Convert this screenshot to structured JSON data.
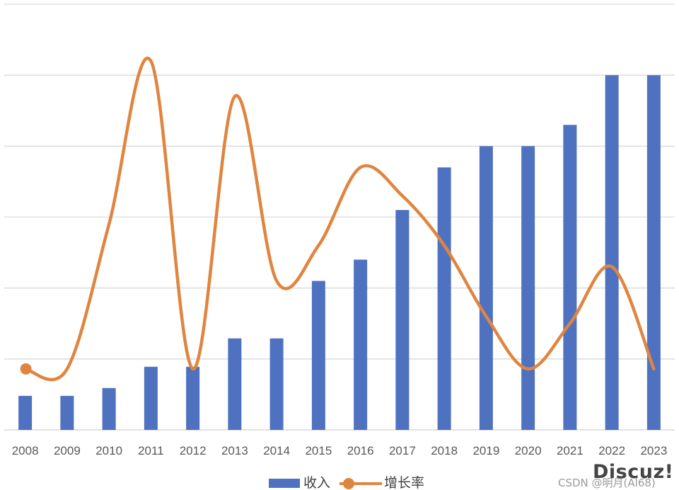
{
  "chart_data": {
    "type": "bar",
    "categories": [
      "2008",
      "2009",
      "2010",
      "2011",
      "2012",
      "2013",
      "2014",
      "2015",
      "2016",
      "2017",
      "2018",
      "2019",
      "2020",
      "2021",
      "2022",
      "2023"
    ],
    "series": [
      {
        "name": "收入",
        "type": "bar",
        "color": "#4F72C0",
        "values": [
          0.48,
          0.48,
          0.59,
          0.89,
          0.89,
          1.29,
          1.29,
          2.1,
          2.4,
          3.1,
          3.7,
          4.0,
          4.0,
          4.3,
          5.0,
          5.0
        ]
      },
      {
        "name": "增长率",
        "type": "line",
        "smooth": true,
        "color": "#E0853F",
        "values": [
          0.86,
          0.86,
          2.9,
          5.2,
          0.86,
          4.7,
          2.1,
          2.6,
          3.7,
          3.3,
          2.6,
          1.6,
          0.86,
          1.5,
          2.3,
          0.86
        ]
      }
    ],
    "ylim": [
      0,
      6
    ],
    "grid": true,
    "legend": "bottom",
    "title": "",
    "xlabel": "",
    "ylabel": ""
  },
  "legend": {
    "bar_label": "收入",
    "line_label": "增长率"
  },
  "watermark": {
    "logo": "Discuz!",
    "text": "CSDN @明月(Al68)"
  }
}
